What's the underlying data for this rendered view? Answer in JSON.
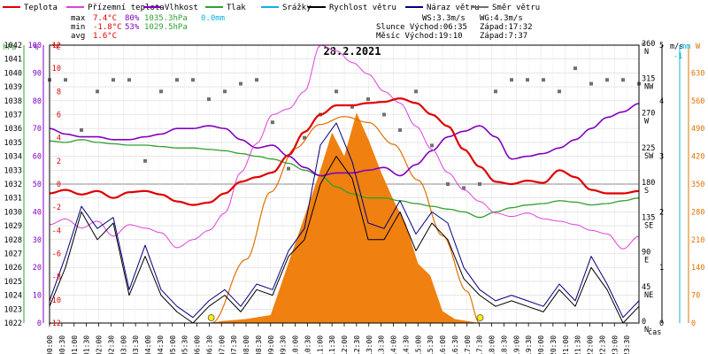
{
  "chart_data": {
    "type": "line",
    "title": "28.2.2021",
    "legend": [
      {
        "key": "temp",
        "label": "Teplota",
        "color": "#e00000"
      },
      {
        "key": "feels",
        "label": "Přízemní teplota",
        "color": "#e040e0"
      },
      {
        "key": "humidity",
        "label": "Vlhkost",
        "color": "#8000c0"
      },
      {
        "key": "pressure",
        "label": "Tlak",
        "color": "#30a030"
      },
      {
        "key": "rain",
        "label": "Srážky",
        "color": "#10b0e0"
      },
      {
        "key": "wind",
        "label": "Rychlost větru",
        "color": "#000000"
      },
      {
        "key": "gust",
        "label": "Náraz větru",
        "color": "#000080"
      },
      {
        "key": "dir",
        "label": "Směr větru",
        "color": "#707070"
      }
    ],
    "stats": {
      "max_label": "max",
      "max_temp": "7.4°C",
      "max_hum": "80%",
      "max_press": "1035.3hPa",
      "max_rain": "0.0mm",
      "min_label": "min",
      "min_temp": "-1.8°C",
      "min_hum": "53%",
      "min_press": "1029.5hPa",
      "avg_label": "avg",
      "avg_temp": "1.6°C",
      "ws": "WS:3.3m/s",
      "wg": "WG:4.3m/s",
      "sun_rise": "Slunce Východ:06:35",
      "sun_set": "Západ:17:32",
      "moon_rise": "Měsíc Východ:19:10",
      "moon_set": "Západ:7:37"
    },
    "axes": {
      "hpa": {
        "unit": "hPa",
        "min": 1022,
        "max": 1042,
        "color": "#30a030"
      },
      "pct": {
        "unit": "%",
        "min": 0,
        "max": 100,
        "color": "#8000c0"
      },
      "temp": {
        "unit": "°C",
        "min": -12,
        "max": 12,
        "color": "#e00000"
      },
      "deg": {
        "unit": "°",
        "ticks": [
          [
            0,
            "0",
            "N"
          ],
          [
            45,
            "45",
            "NE"
          ],
          [
            90,
            "90",
            "E"
          ],
          [
            135,
            "135",
            "SE"
          ],
          [
            180,
            "180",
            "S"
          ],
          [
            225,
            "225",
            "SW"
          ],
          [
            270,
            "270",
            "W"
          ],
          [
            315,
            "315",
            "NW"
          ],
          [
            360,
            "360",
            "N"
          ]
        ]
      },
      "ms": {
        "unit": "m/s",
        "min": 0,
        "max": 5
      },
      "mm": {
        "unit": "mm",
        "min": 0,
        "max": 1,
        "color": "#10b0e0"
      },
      "w": {
        "unit": "W",
        "min": 0,
        "max": 700,
        "color": "#e07000"
      },
      "x_label": "čas",
      "x_ticks": [
        "00:00",
        "00:30",
        "01:00",
        "01:30",
        "02:00",
        "02:30",
        "03:00",
        "03:30",
        "04:00",
        "04:30",
        "05:00",
        "05:30",
        "06:00",
        "06:30",
        "07:00",
        "07:30",
        "08:00",
        "08:30",
        "09:00",
        "09:30",
        "10:00",
        "10:30",
        "11:00",
        "11:30",
        "12:00",
        "12:30",
        "13:00",
        "13:30",
        "14:00",
        "14:30",
        "15:00",
        "15:30",
        "16:00",
        "16:30",
        "17:00",
        "17:30",
        "18:00",
        "18:30",
        "19:00",
        "19:30",
        "20:00",
        "20:30",
        "21:00",
        "21:30",
        "22:00",
        "22:30",
        "23:00",
        "23:30"
      ]
    },
    "series": {
      "temp": [
        [
          0,
          -0.8
        ],
        [
          1,
          -0.5
        ],
        [
          2,
          -0.9
        ],
        [
          3,
          -0.6
        ],
        [
          4,
          -1.2
        ],
        [
          5,
          -0.7
        ],
        [
          6,
          -0.6
        ],
        [
          7,
          -0.9
        ],
        [
          8,
          -1.5
        ],
        [
          9,
          -1.8
        ],
        [
          10,
          -1.6
        ],
        [
          11,
          -0.8
        ],
        [
          12,
          0.2
        ],
        [
          13,
          0.6
        ],
        [
          14,
          1.0
        ],
        [
          15,
          2.5
        ],
        [
          16,
          4.5
        ],
        [
          17,
          6.0
        ],
        [
          18,
          6.8
        ],
        [
          19,
          6.8
        ],
        [
          20,
          7.0
        ],
        [
          21,
          7.1
        ],
        [
          22,
          7.4
        ],
        [
          23,
          7.0
        ],
        [
          24,
          6.0
        ],
        [
          25,
          5.0
        ],
        [
          26,
          3.0
        ],
        [
          27,
          1.5
        ],
        [
          28,
          0.2
        ],
        [
          29,
          0.0
        ],
        [
          30,
          0.3
        ],
        [
          31,
          0.1
        ],
        [
          32,
          1.2
        ],
        [
          33,
          0.6
        ],
        [
          34,
          -0.5
        ],
        [
          35,
          -0.8
        ],
        [
          36,
          -0.8
        ],
        [
          37,
          -0.6
        ]
      ],
      "feels": [
        [
          0,
          -3.5
        ],
        [
          1,
          -3.0
        ],
        [
          2,
          -3.8
        ],
        [
          3,
          -3.2
        ],
        [
          4,
          -4.5
        ],
        [
          5,
          -3.5
        ],
        [
          6,
          -3.8
        ],
        [
          7,
          -4.2
        ],
        [
          8,
          -5.5
        ],
        [
          9,
          -4.8
        ],
        [
          10,
          -4.0
        ],
        [
          11,
          -2.5
        ],
        [
          12,
          1.0
        ],
        [
          13,
          3.5
        ],
        [
          14,
          6.0
        ],
        [
          15,
          6.5
        ],
        [
          16,
          8.0
        ],
        [
          17,
          12.0
        ],
        [
          18,
          11.5
        ],
        [
          19,
          10.5
        ],
        [
          20,
          9.5
        ],
        [
          21,
          8.0
        ],
        [
          22,
          7.0
        ],
        [
          23,
          5.0
        ],
        [
          24,
          3.0
        ],
        [
          25,
          1.0
        ],
        [
          26,
          -0.5
        ],
        [
          27,
          -1.5
        ],
        [
          28,
          -2.5
        ],
        [
          29,
          -2.8
        ],
        [
          30,
          -2.5
        ],
        [
          31,
          -3.0
        ],
        [
          32,
          -3.2
        ],
        [
          33,
          -3.5
        ],
        [
          34,
          -4.0
        ],
        [
          35,
          -4.3
        ],
        [
          36,
          -5.6
        ],
        [
          37,
          -4.5
        ]
      ],
      "humidity": [
        [
          0,
          70
        ],
        [
          1,
          68
        ],
        [
          2,
          67
        ],
        [
          3,
          67
        ],
        [
          4,
          66
        ],
        [
          5,
          66
        ],
        [
          6,
          67
        ],
        [
          7,
          68
        ],
        [
          8,
          70
        ],
        [
          9,
          70
        ],
        [
          10,
          71
        ],
        [
          11,
          70
        ],
        [
          12,
          66
        ],
        [
          13,
          63
        ],
        [
          14,
          64
        ],
        [
          15,
          60
        ],
        [
          16,
          56
        ],
        [
          17,
          53
        ],
        [
          18,
          54
        ],
        [
          19,
          54
        ],
        [
          20,
          55
        ],
        [
          21,
          56
        ],
        [
          22,
          53
        ],
        [
          23,
          57
        ],
        [
          24,
          62
        ],
        [
          25,
          67
        ],
        [
          26,
          69
        ],
        [
          27,
          71
        ],
        [
          28,
          67
        ],
        [
          29,
          59
        ],
        [
          30,
          60
        ],
        [
          31,
          61
        ],
        [
          32,
          63
        ],
        [
          33,
          66
        ],
        [
          34,
          70
        ],
        [
          35,
          74
        ],
        [
          36,
          76
        ],
        [
          37,
          79
        ]
      ],
      "pressure": [
        [
          0,
          1035.1
        ],
        [
          1,
          1035.0
        ],
        [
          2,
          1035.2
        ],
        [
          3,
          1035.0
        ],
        [
          4,
          1034.9
        ],
        [
          5,
          1034.8
        ],
        [
          6,
          1034.8
        ],
        [
          7,
          1034.7
        ],
        [
          8,
          1034.6
        ],
        [
          9,
          1034.6
        ],
        [
          10,
          1034.5
        ],
        [
          11,
          1034.4
        ],
        [
          12,
          1034.2
        ],
        [
          13,
          1034.0
        ],
        [
          14,
          1033.8
        ],
        [
          15,
          1033.5
        ],
        [
          16,
          1033.0
        ],
        [
          17,
          1032.6
        ],
        [
          18,
          1031.8
        ],
        [
          19,
          1031.3
        ],
        [
          20,
          1031.0
        ],
        [
          21,
          1031.0
        ],
        [
          22,
          1030.8
        ],
        [
          23,
          1030.6
        ],
        [
          24,
          1030.4
        ],
        [
          25,
          1030.2
        ],
        [
          26,
          1030.0
        ],
        [
          27,
          1029.6
        ],
        [
          28,
          1030.0
        ],
        [
          29,
          1030.3
        ],
        [
          30,
          1030.5
        ],
        [
          31,
          1030.6
        ],
        [
          32,
          1030.8
        ],
        [
          33,
          1030.7
        ],
        [
          34,
          1030.5
        ],
        [
          35,
          1030.6
        ],
        [
          36,
          1030.8
        ],
        [
          37,
          1031.0
        ]
      ],
      "wind": [
        [
          0,
          0.3
        ],
        [
          1,
          1.0
        ],
        [
          2,
          2.0
        ],
        [
          3,
          1.5
        ],
        [
          4,
          1.8
        ],
        [
          5,
          0.5
        ],
        [
          6,
          1.2
        ],
        [
          7,
          0.5
        ],
        [
          8,
          0.2
        ],
        [
          9,
          0.0
        ],
        [
          10,
          0.3
        ],
        [
          11,
          0.5
        ],
        [
          12,
          0.2
        ],
        [
          13,
          0.6
        ],
        [
          14,
          0.5
        ],
        [
          15,
          1.2
        ],
        [
          16,
          1.5
        ],
        [
          17,
          2.5
        ],
        [
          18,
          3.0
        ],
        [
          19,
          2.6
        ],
        [
          20,
          1.5
        ],
        [
          21,
          1.5
        ],
        [
          22,
          2.0
        ],
        [
          23,
          1.3
        ],
        [
          24,
          1.8
        ],
        [
          25,
          1.5
        ],
        [
          26,
          0.8
        ],
        [
          27,
          0.5
        ],
        [
          28,
          0.3
        ],
        [
          29,
          0.4
        ],
        [
          30,
          0.3
        ],
        [
          31,
          0.2
        ],
        [
          32,
          0.6
        ],
        [
          33,
          0.3
        ],
        [
          34,
          1.0
        ],
        [
          35,
          0.6
        ],
        [
          36,
          0.0
        ],
        [
          37,
          0.3
        ]
      ],
      "gust": [
        [
          0,
          0.4
        ],
        [
          1,
          1.2
        ],
        [
          2,
          2.1
        ],
        [
          3,
          1.7
        ],
        [
          4,
          1.9
        ],
        [
          5,
          0.6
        ],
        [
          6,
          1.4
        ],
        [
          7,
          0.6
        ],
        [
          8,
          0.3
        ],
        [
          9,
          0.1
        ],
        [
          10,
          0.4
        ],
        [
          11,
          0.6
        ],
        [
          12,
          0.3
        ],
        [
          13,
          0.7
        ],
        [
          14,
          0.6
        ],
        [
          15,
          1.3
        ],
        [
          16,
          1.7
        ],
        [
          17,
          3.2
        ],
        [
          18,
          3.6
        ],
        [
          19,
          2.9
        ],
        [
          20,
          1.8
        ],
        [
          21,
          1.7
        ],
        [
          22,
          2.2
        ],
        [
          23,
          1.6
        ],
        [
          24,
          2.0
        ],
        [
          25,
          1.8
        ],
        [
          26,
          1.0
        ],
        [
          27,
          0.6
        ],
        [
          28,
          0.4
        ],
        [
          29,
          0.5
        ],
        [
          30,
          0.4
        ],
        [
          31,
          0.3
        ],
        [
          32,
          0.7
        ],
        [
          33,
          0.4
        ],
        [
          34,
          1.2
        ],
        [
          35,
          0.7
        ],
        [
          36,
          0.1
        ],
        [
          37,
          0.4
        ]
      ],
      "solar_theoretical": [
        [
          6.6,
          0
        ],
        [
          8,
          160
        ],
        [
          9,
          330
        ],
        [
          10,
          440
        ],
        [
          11,
          500
        ],
        [
          12,
          520
        ],
        [
          13,
          505
        ],
        [
          14,
          450
        ],
        [
          15,
          360
        ],
        [
          16,
          220
        ],
        [
          17,
          80
        ],
        [
          17.5,
          0
        ]
      ],
      "solar": [
        [
          6.6,
          0
        ],
        [
          7,
          5
        ],
        [
          8,
          10
        ],
        [
          9,
          20
        ],
        [
          10,
          200
        ],
        [
          11,
          380
        ],
        [
          11.5,
          480
        ],
        [
          12,
          420
        ],
        [
          12.5,
          530
        ],
        [
          13,
          460
        ],
        [
          13.5,
          380
        ],
        [
          14,
          310
        ],
        [
          14.5,
          250
        ],
        [
          15,
          150
        ],
        [
          15.5,
          120
        ],
        [
          16,
          30
        ],
        [
          16.5,
          10
        ],
        [
          17.5,
          0
        ]
      ],
      "dir_dots": [
        [
          0,
          315
        ],
        [
          1,
          315
        ],
        [
          2,
          250
        ],
        [
          3,
          300
        ],
        [
          4,
          315
        ],
        [
          5,
          315
        ],
        [
          6,
          210
        ],
        [
          7,
          300
        ],
        [
          8,
          315
        ],
        [
          9,
          315
        ],
        [
          10,
          290
        ],
        [
          11,
          300
        ],
        [
          12,
          310
        ],
        [
          13,
          315
        ],
        [
          14,
          260
        ],
        [
          15,
          200
        ],
        [
          16,
          240
        ],
        [
          17,
          270
        ],
        [
          18,
          300
        ],
        [
          19,
          280
        ],
        [
          20,
          290
        ],
        [
          21,
          270
        ],
        [
          22,
          250
        ],
        [
          23,
          300
        ],
        [
          24,
          230
        ],
        [
          25,
          180
        ],
        [
          26,
          175
        ],
        [
          27,
          180
        ],
        [
          28,
          300
        ],
        [
          29,
          315
        ],
        [
          30,
          315
        ],
        [
          31,
          315
        ],
        [
          32,
          300
        ],
        [
          33,
          330
        ],
        [
          34,
          310
        ],
        [
          35,
          315
        ],
        [
          36,
          315
        ],
        [
          37,
          310
        ]
      ]
    },
    "markers": {
      "sunrise": "06:35",
      "sunset": "17:32"
    }
  }
}
